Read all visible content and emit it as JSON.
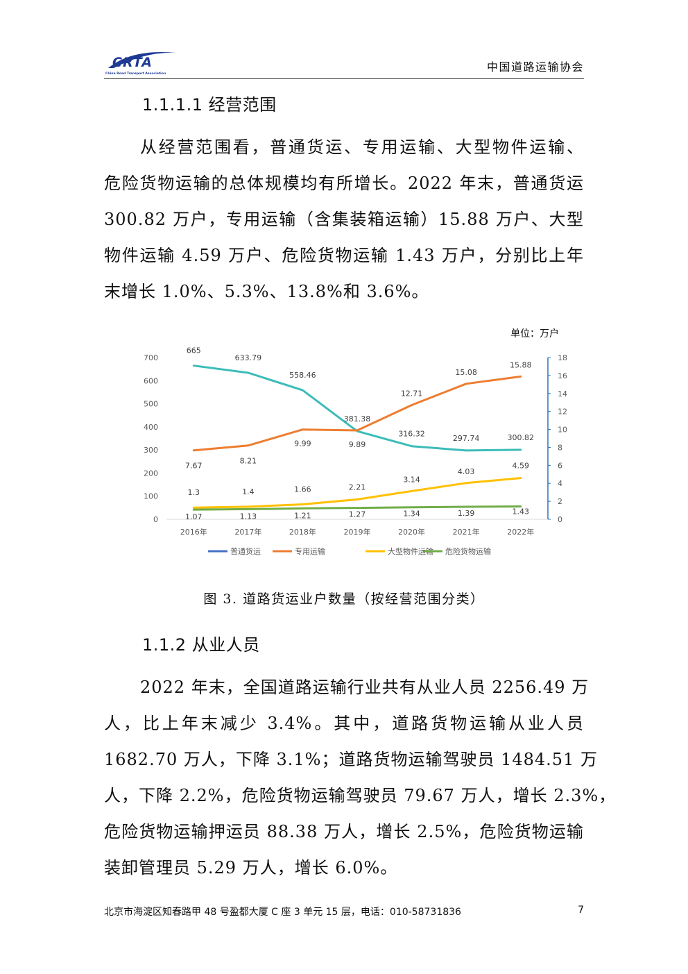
{
  "header": {
    "logo_text": "CRTA",
    "logo_subtext": "China Road Transport Association",
    "org_name": "中国道路运输协会"
  },
  "section_1": {
    "heading": "1.1.1.1 经营范围",
    "paragraph_lines": [
      "从经营范围看，普通货运、专用运输、大型物件运输、",
      "危险货物运输的总体规模均有所增长。2022 年末，普通货运",
      "300.82 万户，专用运输（含集装箱运输）15.88 万户、大型",
      "物件运输 4.59 万户、危险货物运输 1.43 万户，分别比上年",
      "末增长 1.0%、5.3%、13.8%和 3.6%。"
    ]
  },
  "chart_unit": "单位：万户",
  "chart_data": {
    "type": "line",
    "categories": [
      "2016年",
      "2017年",
      "2018年",
      "2019年",
      "2020年",
      "2021年",
      "2022年"
    ],
    "y_left": {
      "ylim": [
        0,
        700
      ],
      "ticks": [
        0,
        100,
        200,
        300,
        400,
        500,
        600,
        700
      ]
    },
    "y_right": {
      "ylim": [
        0,
        18
      ],
      "ticks": [
        0,
        2,
        4,
        6,
        8,
        10,
        12,
        14,
        16,
        18
      ]
    },
    "series": [
      {
        "name": "普通货运",
        "axis": "left",
        "color": "#3cbcb8",
        "legend_color": "#4472c4",
        "values": [
          665,
          633.79,
          558.46,
          381.38,
          316.32,
          297.74,
          300.82
        ],
        "labels": [
          "665",
          "633.79",
          "558.46",
          "381.38",
          "316.32",
          "297.74",
          "300.82"
        ]
      },
      {
        "name": "专用运输",
        "axis": "right",
        "color": "#ed7d31",
        "legend_color": "#ed7d31",
        "values": [
          7.67,
          8.21,
          9.99,
          9.89,
          12.71,
          15.08,
          15.88
        ],
        "labels": [
          "7.67",
          "8.21",
          "9.99",
          "9.89",
          "12.71",
          "15.08",
          "15.88"
        ]
      },
      {
        "name": "大型物件运输",
        "axis": "right",
        "color": "#ffc000",
        "legend_color": "#ffc000",
        "values": [
          1.3,
          1.4,
          1.66,
          2.21,
          3.14,
          4.03,
          4.59
        ],
        "labels": [
          "1.3",
          "1.4",
          "1.66",
          "2.21",
          "3.14",
          "4.03",
          "4.59"
        ]
      },
      {
        "name": "危险货物运输",
        "axis": "right",
        "color": "#70ad47",
        "legend_color": "#70ad47",
        "values": [
          1.07,
          1.13,
          1.21,
          1.27,
          1.34,
          1.39,
          1.43
        ],
        "labels": [
          "1.07",
          "1.13",
          "1.21",
          "1.27",
          "1.34",
          "1.39",
          "1.43"
        ]
      }
    ],
    "legend_position": "bottom",
    "grid": false
  },
  "figure_caption": "图 3. 道路货运业户数量（按经营范围分类）",
  "section_2": {
    "heading": "1.1.2 从业人员",
    "paragraph_lines": [
      "2022 年末，全国道路运输行业共有从业人员 2256.49 万",
      "人，比上年末减少 3.4%。其中，道路货物运输从业人员",
      "1682.70 万人，下降 3.1%；道路货物运输驾驶员 1484.51 万",
      "人，下降 2.2%，危险货物运输驾驶员 79.67 万人，增长 2.3%，",
      "危险货物运输押运员 88.38 万人，增长 2.5%，危险货物运输",
      "装卸管理员 5.29 万人，增长 6.0%。"
    ]
  },
  "footer": {
    "address": "北京市海淀区知春路甲 48 号盈都大厦 C 座 3 单元 15 层，电话：010-58731836",
    "page_number": "7"
  }
}
